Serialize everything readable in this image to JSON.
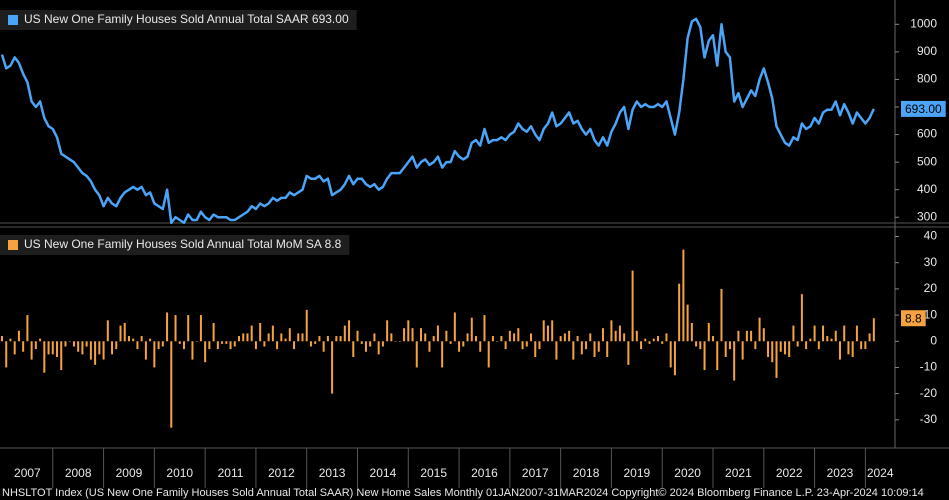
{
  "chart_data": [
    {
      "type": "line",
      "title": "US New One Family Houses Sold Annual Total SAAR 693.00",
      "x": [
        "2007-01",
        "2007-02",
        "2007-03",
        "2007-04",
        "2007-05",
        "2007-06",
        "2007-07",
        "2007-08",
        "2007-09",
        "2007-10",
        "2007-11",
        "2007-12",
        "2008-01",
        "2008-02",
        "2008-03",
        "2008-04",
        "2008-05",
        "2008-06",
        "2008-07",
        "2008-08",
        "2008-09",
        "2008-10",
        "2008-11",
        "2008-12",
        "2009-01",
        "2009-02",
        "2009-03",
        "2009-04",
        "2009-05",
        "2009-06",
        "2009-07",
        "2009-08",
        "2009-09",
        "2009-10",
        "2009-11",
        "2009-12",
        "2010-01",
        "2010-02",
        "2010-03",
        "2010-04",
        "2010-05",
        "2010-06",
        "2010-07",
        "2010-08",
        "2010-09",
        "2010-10",
        "2010-11",
        "2010-12",
        "2011-01",
        "2011-02",
        "2011-03",
        "2011-04",
        "2011-05",
        "2011-06",
        "2011-07",
        "2011-08",
        "2011-09",
        "2011-10",
        "2011-11",
        "2011-12",
        "2012-01",
        "2012-02",
        "2012-03",
        "2012-04",
        "2012-05",
        "2012-06",
        "2012-07",
        "2012-08",
        "2012-09",
        "2012-10",
        "2012-11",
        "2012-12",
        "2013-01",
        "2013-02",
        "2013-03",
        "2013-04",
        "2013-05",
        "2013-06",
        "2013-07",
        "2013-08",
        "2013-09",
        "2013-10",
        "2013-11",
        "2013-12",
        "2014-01",
        "2014-02",
        "2014-03",
        "2014-04",
        "2014-05",
        "2014-06",
        "2014-07",
        "2014-08",
        "2014-09",
        "2014-10",
        "2014-11",
        "2014-12",
        "2015-01",
        "2015-02",
        "2015-03",
        "2015-04",
        "2015-05",
        "2015-06",
        "2015-07",
        "2015-08",
        "2015-09",
        "2015-10",
        "2015-11",
        "2015-12",
        "2016-01",
        "2016-02",
        "2016-03",
        "2016-04",
        "2016-05",
        "2016-06",
        "2016-07",
        "2016-08",
        "2016-09",
        "2016-10",
        "2016-11",
        "2016-12",
        "2017-01",
        "2017-02",
        "2017-03",
        "2017-04",
        "2017-05",
        "2017-06",
        "2017-07",
        "2017-08",
        "2017-09",
        "2017-10",
        "2017-11",
        "2017-12",
        "2018-01",
        "2018-02",
        "2018-03",
        "2018-04",
        "2018-05",
        "2018-06",
        "2018-07",
        "2018-08",
        "2018-09",
        "2018-10",
        "2018-11",
        "2018-12",
        "2019-01",
        "2019-02",
        "2019-03",
        "2019-04",
        "2019-05",
        "2019-06",
        "2019-07",
        "2019-08",
        "2019-09",
        "2019-10",
        "2019-11",
        "2019-12",
        "2020-01",
        "2020-02",
        "2020-03",
        "2020-04",
        "2020-05",
        "2020-06",
        "2020-07",
        "2020-08",
        "2020-09",
        "2020-10",
        "2020-11",
        "2020-12",
        "2021-01",
        "2021-02",
        "2021-03",
        "2021-04",
        "2021-05",
        "2021-06",
        "2021-07",
        "2021-08",
        "2021-09",
        "2021-10",
        "2021-11",
        "2021-12",
        "2022-01",
        "2022-02",
        "2022-03",
        "2022-04",
        "2022-05",
        "2022-06",
        "2022-07",
        "2022-08",
        "2022-09",
        "2022-10",
        "2022-11",
        "2022-12",
        "2023-01",
        "2023-02",
        "2023-03",
        "2023-04",
        "2023-05",
        "2023-06",
        "2023-07",
        "2023-08",
        "2023-09",
        "2023-10",
        "2023-11",
        "2023-12",
        "2024-01",
        "2024-02",
        "2024-03"
      ],
      "xlim": [
        "2007-01",
        "2024-08"
      ],
      "xticks": [
        "2007",
        "2008",
        "2009",
        "2010",
        "2011",
        "2012",
        "2013",
        "2014",
        "2015",
        "2016",
        "2017",
        "2018",
        "2019",
        "2020",
        "2021",
        "2022",
        "2023",
        "2024"
      ],
      "values": [
        890,
        840,
        850,
        880,
        860,
        820,
        790,
        720,
        700,
        720,
        660,
        630,
        620,
        590,
        530,
        520,
        510,
        500,
        480,
        460,
        450,
        430,
        400,
        380,
        340,
        370,
        350,
        340,
        370,
        390,
        400,
        410,
        400,
        410,
        380,
        390,
        350,
        340,
        330,
        400,
        280,
        300,
        290,
        280,
        310,
        290,
        290,
        320,
        300,
        290,
        310,
        300,
        300,
        300,
        290,
        290,
        300,
        310,
        320,
        340,
        330,
        350,
        340,
        350,
        370,
        360,
        370,
        370,
        390,
        380,
        390,
        400,
        450,
        440,
        440,
        450,
        430,
        440,
        380,
        390,
        400,
        420,
        450,
        420,
        440,
        440,
        420,
        410,
        420,
        400,
        410,
        440,
        460,
        460,
        460,
        480,
        500,
        520,
        480,
        500,
        510,
        490,
        500,
        520,
        480,
        500,
        500,
        540,
        520,
        510,
        520,
        570,
        580,
        560,
        620,
        570,
        580,
        580,
        590,
        580,
        600,
        610,
        640,
        620,
        610,
        630,
        600,
        580,
        620,
        640,
        680,
        630,
        640,
        660,
        680,
        640,
        650,
        620,
        600,
        620,
        580,
        560,
        590,
        560,
        610,
        640,
        680,
        700,
        620,
        690,
        720,
        700,
        710,
        700,
        700,
        710,
        700,
        720,
        660,
        600,
        680,
        800,
        950,
        1010,
        1020,
        990,
        880,
        940,
        960,
        850,
        1000,
        900,
        880,
        720,
        750,
        700,
        730,
        760,
        740,
        800,
        840,
        790,
        730,
        630,
        600,
        570,
        560,
        590,
        580,
        640,
        620,
        630,
        660,
        640,
        680,
        690,
        690,
        720,
        670,
        710,
        680,
        640,
        680,
        660,
        640,
        660,
        693
      ],
      "value_labels": [
        null,
        null,
        null,
        null,
        null,
        null,
        null,
        null,
        null,
        null,
        null,
        null,
        null,
        null,
        null,
        null,
        null,
        null,
        null,
        null,
        null,
        null,
        null,
        null,
        null,
        null,
        null,
        null,
        null,
        null,
        null,
        null,
        null,
        null,
        null,
        null,
        null,
        null,
        null,
        null,
        null,
        null,
        null,
        null,
        null,
        null,
        null,
        null,
        null,
        null,
        null,
        null,
        null,
        null,
        null,
        null,
        null,
        null,
        null,
        null,
        null,
        null,
        null,
        null,
        null,
        null,
        null,
        null,
        null,
        null,
        null,
        null,
        null,
        null,
        null,
        null,
        null,
        null,
        null,
        null,
        null,
        null,
        null,
        null,
        null,
        null,
        null,
        null,
        null,
        null,
        null,
        null,
        null,
        null,
        null,
        null,
        null,
        null,
        null,
        null,
        null,
        null,
        null,
        null,
        null,
        null,
        null,
        null,
        null,
        null,
        null,
        null,
        null,
        null,
        null,
        null,
        null,
        null,
        null,
        null,
        null,
        null,
        null,
        null,
        null,
        null,
        null,
        null,
        null,
        null,
        null,
        null,
        null,
        null,
        null,
        null,
        null,
        null,
        null,
        null,
        null,
        null,
        null,
        null,
        null,
        null,
        null,
        null,
        null,
        null,
        null,
        null,
        null,
        null,
        null,
        null,
        null,
        null,
        null,
        null,
        null,
        null,
        null,
        null,
        null,
        null,
        null,
        null,
        null,
        null,
        null,
        null,
        null,
        null,
        null,
        null,
        null,
        null,
        null,
        null,
        null,
        null,
        null,
        null,
        null,
        null,
        null,
        null,
        null,
        null,
        null,
        null,
        null,
        null,
        null,
        null,
        null,
        null,
        null,
        null,
        null,
        null,
        null,
        null,
        null,
        null,
        "693.00"
      ],
      "color": "#4ba4f7",
      "ylim": [
        290,
        1070
      ],
      "yticks": [
        300,
        400,
        500,
        600,
        700,
        800,
        900,
        1000
      ]
    },
    {
      "type": "bar",
      "title": "US New One Family Houses Sold Annual Total MoM SA 8.8",
      "values": [
        2,
        -10,
        1,
        -5,
        4,
        -4,
        10,
        -7,
        -3,
        1,
        -12,
        -5,
        -5,
        -6,
        -11,
        -2,
        0,
        -2,
        -4,
        -5,
        -2,
        -7,
        -9,
        -5,
        -7,
        8,
        -5,
        -3,
        6,
        7,
        2,
        1,
        -3,
        2,
        -7,
        1,
        -10,
        -3,
        -2,
        11,
        -33,
        10,
        -1,
        -3,
        10,
        -7,
        0,
        10,
        -8,
        -3,
        7,
        -3,
        -1,
        -1,
        -3,
        -2,
        2,
        3,
        3,
        6,
        -3,
        7,
        -2,
        3,
        6,
        -3,
        3,
        1,
        5,
        -3,
        3,
        3,
        12,
        -2,
        -1,
        2,
        -4,
        2,
        -20,
        2,
        2,
        6,
        8,
        -6,
        4,
        -1,
        -4,
        -2,
        3,
        -5,
        -2,
        8,
        3,
        0,
        0,
        5,
        8,
        5,
        -10,
        5,
        3,
        -4,
        2,
        6,
        -10,
        4,
        -1,
        11,
        -4,
        -2,
        3,
        9,
        2,
        -4,
        10,
        -10,
        2,
        0,
        2,
        -3,
        4,
        3,
        5,
        -3,
        -2,
        3,
        -6,
        -3,
        8,
        6,
        8,
        -7,
        2,
        3,
        4,
        -7,
        2,
        -5,
        -3,
        3,
        -6,
        -4,
        5,
        -6,
        8,
        4,
        6,
        3,
        -9,
        27,
        4,
        -3,
        1,
        -1,
        1,
        2,
        -1,
        3,
        -10,
        -13,
        22,
        35,
        14,
        7,
        -2,
        -3,
        -11,
        7,
        2,
        -11,
        20,
        -6,
        -3,
        -15,
        4,
        -7,
        4,
        4,
        -3,
        9,
        5,
        -6,
        -8,
        -14,
        -4,
        -5,
        -6,
        6,
        -2,
        18,
        -3,
        1,
        6,
        -3,
        6,
        2,
        1,
        4,
        -7,
        6,
        -5,
        -6,
        6,
        -3,
        -3,
        3,
        8.8
      ],
      "color": "#f5a340",
      "ylim": [
        -40,
        42.5
      ],
      "yticks": [
        -30,
        -20,
        -10,
        0,
        10,
        20,
        30,
        40
      ]
    }
  ],
  "footer": "NHSLTOT Index (US New One Family Houses Sold Annual Total SAAR) New Home Sales  Monthly 01JAN2007-31MAR2024 Copyright© 2024 Bloomberg Finance L.P.  23-Apr-2024 10:09:14"
}
